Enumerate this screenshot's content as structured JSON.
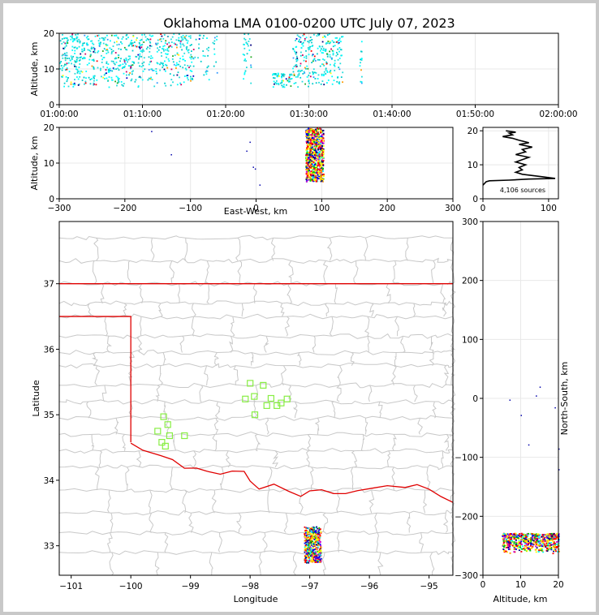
{
  "chart_data": {
    "type": "scatter",
    "title": "Oklahoma LMA 0100-0200 UTC July 07, 2023",
    "source_count_label": "4,106 sources",
    "colors": {
      "county_lines": "#c8c8c8",
      "state_border": "#e00000",
      "station": "#88ee44",
      "grid": "#e8e8e8"
    },
    "time_panel": {
      "ylabel": "Altitude, km",
      "xticks": [
        "01:00:00",
        "01:10:00",
        "01:20:00",
        "01:30:00",
        "01:40:00",
        "01:50:00",
        "02:00:00"
      ],
      "yticks": [
        "0",
        "10",
        "20"
      ],
      "xlim_minutes": [
        0,
        60
      ],
      "ylim": [
        0,
        20
      ],
      "bursts": [
        {
          "t0": 0.0,
          "t1": 3.0,
          "z0": 5,
          "z1": 20,
          "density": 0.45
        },
        {
          "t0": 3.0,
          "t1": 9.0,
          "z0": 5,
          "z1": 20,
          "density": 0.35
        },
        {
          "t0": 9.0,
          "t1": 16.0,
          "z0": 5,
          "z1": 20,
          "density": 0.3
        },
        {
          "t0": 16.0,
          "t1": 19.0,
          "z0": 6,
          "z1": 20,
          "density": 0.12
        },
        {
          "t0": 22.0,
          "t1": 23.0,
          "z0": 6,
          "z1": 20,
          "density": 0.25
        },
        {
          "t0": 25.5,
          "t1": 28.0,
          "z0": 5,
          "z1": 9,
          "density": 0.2
        },
        {
          "t0": 28.0,
          "t1": 34.0,
          "z0": 5,
          "z1": 20,
          "density": 0.35
        },
        {
          "t0": 36.0,
          "t1": 36.3,
          "z0": 5,
          "z1": 18,
          "density": 0.4
        }
      ]
    },
    "ew_panel": {
      "ylabel": "Altitude, km",
      "xlabel": "East-West, km",
      "xticks": [
        "−300",
        "−200",
        "−100",
        "0",
        "100",
        "200",
        "300"
      ],
      "yticks": [
        "0",
        "10",
        "20"
      ],
      "xlim": [
        -300,
        300
      ],
      "ylim": [
        0,
        20
      ],
      "core": {
        "x0": 75,
        "x1": 102,
        "z0": 5,
        "z1": 20
      }
    },
    "hist_panel": {
      "xticks": [
        "0",
        "100"
      ],
      "yticks": [
        "0",
        "10",
        "20"
      ],
      "xlim": [
        0,
        115
      ],
      "ylim": [
        0,
        21
      ],
      "profile": [
        [
          5,
          5
        ],
        [
          10,
          5.3
        ],
        [
          40,
          5.5
        ],
        [
          70,
          5.8
        ],
        [
          110,
          6.0
        ],
        [
          90,
          6.5
        ],
        [
          60,
          7.2
        ],
        [
          50,
          7.8
        ],
        [
          60,
          8.5
        ],
        [
          55,
          9.2
        ],
        [
          65,
          10
        ],
        [
          50,
          10.8
        ],
        [
          60,
          11.5
        ],
        [
          70,
          12.2
        ],
        [
          50,
          13
        ],
        [
          65,
          13.8
        ],
        [
          60,
          14.5
        ],
        [
          75,
          15.2
        ],
        [
          55,
          16
        ],
        [
          70,
          16.5
        ],
        [
          55,
          17.2
        ],
        [
          45,
          17.8
        ],
        [
          30,
          18.3
        ],
        [
          45,
          18.8
        ],
        [
          40,
          19.3
        ],
        [
          50,
          19.6
        ],
        [
          35,
          20
        ]
      ]
    },
    "map_panel": {
      "xlabel": "Longitude",
      "ylabel": "Latitude",
      "xticks": [
        "−101",
        "−100",
        "−99",
        "−98",
        "−97",
        "−96",
        "−95"
      ],
      "yticks": [
        "33",
        "34",
        "35",
        "36",
        "37"
      ],
      "xlim": [
        -101.2,
        -94.6
      ],
      "ylim": [
        32.55,
        37.95
      ],
      "stations": [
        [
          -99.55,
          34.75
        ],
        [
          -99.45,
          34.97
        ],
        [
          -99.38,
          34.85
        ],
        [
          -99.35,
          34.68
        ],
        [
          -99.48,
          34.58
        ],
        [
          -99.42,
          34.52
        ],
        [
          -99.1,
          34.68
        ],
        [
          -98.0,
          35.48
        ],
        [
          -98.08,
          35.24
        ],
        [
          -97.93,
          35.28
        ],
        [
          -97.78,
          35.45
        ],
        [
          -97.72,
          35.14
        ],
        [
          -97.65,
          35.25
        ],
        [
          -97.55,
          35.14
        ],
        [
          -97.48,
          35.18
        ],
        [
          -97.38,
          35.24
        ],
        [
          -97.92,
          35.0
        ]
      ],
      "core": {
        "lon0": -97.1,
        "lon1": -96.82,
        "lat0": 32.75,
        "lat1": 33.3
      }
    },
    "ns_panel": {
      "ylabel": "North-South, km",
      "xlabel": "Altitude, km",
      "xticks": [
        "0",
        "10",
        "20"
      ],
      "yticks": [
        "−300",
        "−200",
        "−100",
        "0",
        "100",
        "200",
        "300"
      ],
      "xlim": [
        0,
        20
      ],
      "ylim": [
        -300,
        300
      ],
      "core": {
        "z0": 5,
        "z1": 20,
        "y0": -262,
        "y1": -228
      }
    }
  }
}
